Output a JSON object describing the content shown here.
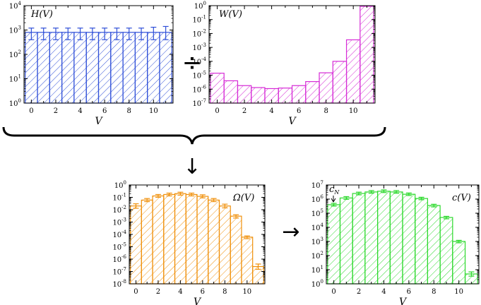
{
  "chart_data": [
    {
      "id": "H",
      "type": "bar",
      "scale": "log",
      "title": "H(V)",
      "xlabel": "V",
      "x": [
        0,
        1,
        2,
        3,
        4,
        5,
        6,
        7,
        8,
        9,
        10,
        11
      ],
      "values": [
        800,
        800,
        800,
        800,
        800,
        800,
        800,
        800,
        800,
        800,
        800,
        800
      ],
      "err_low": [
        400,
        400,
        400,
        400,
        400,
        400,
        400,
        400,
        400,
        400,
        400,
        400
      ],
      "err_high": [
        1200,
        1200,
        1200,
        1200,
        1200,
        1200,
        1200,
        1200,
        1200,
        1200,
        1300,
        1400
      ],
      "xlim": [
        -0.6,
        11.6
      ],
      "ylim_exp": [
        0,
        4
      ],
      "xticks": [
        "0",
        "2",
        "4",
        "6",
        "8",
        "10"
      ],
      "color": "#2f4fd8"
    },
    {
      "id": "W",
      "type": "bar",
      "scale": "log",
      "title": "W(V)",
      "xlabel": "V",
      "x": [
        0,
        1,
        2,
        3,
        4,
        5,
        6,
        7,
        8,
        9,
        10,
        11
      ],
      "values": [
        1.4e-05,
        4e-06,
        1.8e-06,
        1.3e-06,
        1.1e-06,
        1.2e-06,
        1.8e-06,
        3.5e-06,
        1.5e-05,
        0.0001,
        0.0035,
        0.9
      ],
      "xlim": [
        -0.6,
        11.6
      ],
      "ylim_exp": [
        -7,
        0
      ],
      "xticks": [
        "0",
        "2",
        "4",
        "6",
        "8",
        "10"
      ],
      "color": "#d62bd6"
    },
    {
      "id": "Omega",
      "type": "bar",
      "scale": "log",
      "title": "Ω(V)",
      "xlabel": "V",
      "x": [
        0,
        1,
        2,
        3,
        4,
        5,
        6,
        7,
        8,
        9,
        10,
        11
      ],
      "values": [
        0.02,
        0.06,
        0.13,
        0.17,
        0.2,
        0.17,
        0.12,
        0.06,
        0.02,
        0.003,
        6e-05,
        2.5e-07
      ],
      "err_low": [
        0.013,
        0.045,
        0.1,
        0.13,
        0.15,
        0.13,
        0.09,
        0.045,
        0.014,
        0.0021,
        4.5e-05,
        1.5e-07
      ],
      "err_high": [
        0.03,
        0.08,
        0.17,
        0.22,
        0.26,
        0.22,
        0.16,
        0.08,
        0.028,
        0.0039,
        7.5e-05,
        4e-07
      ],
      "xlim": [
        -0.6,
        11.6
      ],
      "ylim_exp": [
        -8,
        0
      ],
      "xticks": [
        "0",
        "2",
        "4",
        "6",
        "8",
        "10"
      ],
      "color": "#f0900a"
    },
    {
      "id": "c",
      "type": "bar",
      "scale": "log",
      "title": "c(V)",
      "xlabel": "V",
      "annotation": "cN",
      "x": [
        0,
        1,
        2,
        3,
        4,
        5,
        6,
        7,
        8,
        9,
        10,
        11
      ],
      "values": [
        400000.0,
        1200000.0,
        2500000.0,
        3200000.0,
        3600000.0,
        3200000.0,
        2200000.0,
        1100000.0,
        350000.0,
        50000.0,
        1000.0,
        5
      ],
      "err_low": [
        320000.0,
        950000.0,
        2000000.0,
        2600000.0,
        2900000.0,
        2600000.0,
        1800000.0,
        900000.0,
        280000.0,
        40000.0,
        800.0,
        3.5
      ],
      "err_high": [
        500000.0,
        1500000.0,
        3100000.0,
        4000000.0,
        4500000.0,
        4000000.0,
        2700000.0,
        1350000.0,
        430000.0,
        60000.0,
        1200.0,
        7
      ],
      "xlim": [
        -0.6,
        11.6
      ],
      "ylim_exp": [
        0,
        7
      ],
      "xticks": [
        "0",
        "2",
        "4",
        "6",
        "8",
        "10"
      ],
      "color": "#2bd92b"
    }
  ],
  "operators": {
    "divide": "÷",
    "down_arrow": "↓",
    "right_arrow": "→"
  }
}
